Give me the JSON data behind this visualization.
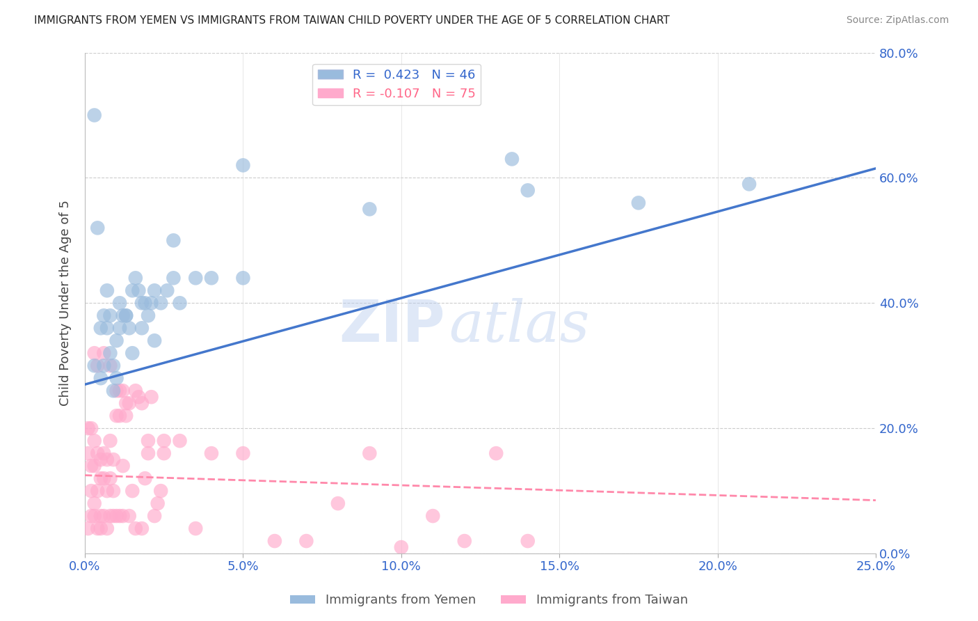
{
  "title": "IMMIGRANTS FROM YEMEN VS IMMIGRANTS FROM TAIWAN CHILD POVERTY UNDER THE AGE OF 5 CORRELATION CHART",
  "source": "Source: ZipAtlas.com",
  "xlabel_vals": [
    0.0,
    0.05,
    0.1,
    0.15,
    0.2,
    0.25
  ],
  "ylabel_vals": [
    0.0,
    0.2,
    0.4,
    0.6,
    0.8
  ],
  "ylabel_label": "Child Poverty Under the Age of 5",
  "yemen_R": 0.423,
  "yemen_N": 46,
  "taiwan_R": -0.107,
  "taiwan_N": 75,
  "yemen_color": "#99BBDD",
  "taiwan_color": "#FFAACC",
  "yemen_line_color": "#4477CC",
  "taiwan_line_color": "#FF88AA",
  "watermark_text": "ZIP",
  "watermark_text2": "atlas",
  "xlim": [
    0.0,
    0.25
  ],
  "ylim": [
    0.0,
    0.8
  ],
  "yemen_line_x0": 0.0,
  "yemen_line_y0": 0.27,
  "yemen_line_x1": 0.25,
  "yemen_line_y1": 0.615,
  "taiwan_line_x0": 0.0,
  "taiwan_line_y0": 0.125,
  "taiwan_line_x1": 0.25,
  "taiwan_line_y1": 0.085,
  "yemen_scatter_x": [
    0.003,
    0.004,
    0.005,
    0.006,
    0.007,
    0.008,
    0.009,
    0.01,
    0.011,
    0.012,
    0.013,
    0.014,
    0.015,
    0.016,
    0.017,
    0.018,
    0.019,
    0.02,
    0.021,
    0.022,
    0.024,
    0.026,
    0.028,
    0.03,
    0.035,
    0.04,
    0.05,
    0.003,
    0.005,
    0.006,
    0.007,
    0.008,
    0.009,
    0.01,
    0.011,
    0.013,
    0.015,
    0.018,
    0.022,
    0.028,
    0.05,
    0.09,
    0.14,
    0.175,
    0.21,
    0.135
  ],
  "yemen_scatter_y": [
    0.7,
    0.52,
    0.36,
    0.38,
    0.42,
    0.32,
    0.3,
    0.34,
    0.4,
    0.38,
    0.38,
    0.36,
    0.42,
    0.44,
    0.42,
    0.4,
    0.4,
    0.38,
    0.4,
    0.42,
    0.4,
    0.42,
    0.44,
    0.4,
    0.44,
    0.44,
    0.44,
    0.3,
    0.28,
    0.3,
    0.36,
    0.38,
    0.26,
    0.28,
    0.36,
    0.38,
    0.32,
    0.36,
    0.34,
    0.5,
    0.62,
    0.55,
    0.58,
    0.56,
    0.59,
    0.63
  ],
  "taiwan_scatter_x": [
    0.001,
    0.001,
    0.002,
    0.002,
    0.002,
    0.003,
    0.003,
    0.003,
    0.004,
    0.004,
    0.005,
    0.005,
    0.005,
    0.006,
    0.006,
    0.007,
    0.007,
    0.008,
    0.008,
    0.009,
    0.009,
    0.01,
    0.01,
    0.011,
    0.011,
    0.012,
    0.013,
    0.013,
    0.014,
    0.015,
    0.016,
    0.017,
    0.018,
    0.019,
    0.02,
    0.021,
    0.022,
    0.023,
    0.024,
    0.025,
    0.001,
    0.002,
    0.003,
    0.004,
    0.005,
    0.006,
    0.007,
    0.008,
    0.009,
    0.01,
    0.011,
    0.012,
    0.014,
    0.016,
    0.018,
    0.02,
    0.025,
    0.03,
    0.035,
    0.04,
    0.05,
    0.06,
    0.07,
    0.08,
    0.09,
    0.1,
    0.11,
    0.12,
    0.13,
    0.14,
    0.003,
    0.004,
    0.006,
    0.008,
    0.012
  ],
  "taiwan_scatter_y": [
    0.2,
    0.16,
    0.2,
    0.14,
    0.1,
    0.18,
    0.14,
    0.08,
    0.16,
    0.1,
    0.15,
    0.12,
    0.06,
    0.16,
    0.12,
    0.15,
    0.1,
    0.18,
    0.12,
    0.15,
    0.1,
    0.26,
    0.22,
    0.26,
    0.22,
    0.26,
    0.24,
    0.22,
    0.24,
    0.1,
    0.26,
    0.25,
    0.24,
    0.12,
    0.18,
    0.25,
    0.06,
    0.08,
    0.1,
    0.16,
    0.04,
    0.06,
    0.06,
    0.04,
    0.04,
    0.06,
    0.04,
    0.06,
    0.06,
    0.06,
    0.06,
    0.06,
    0.06,
    0.04,
    0.04,
    0.16,
    0.18,
    0.18,
    0.04,
    0.16,
    0.16,
    0.02,
    0.02,
    0.08,
    0.16,
    0.01,
    0.06,
    0.02,
    0.16,
    0.02,
    0.32,
    0.3,
    0.32,
    0.3,
    0.14
  ]
}
